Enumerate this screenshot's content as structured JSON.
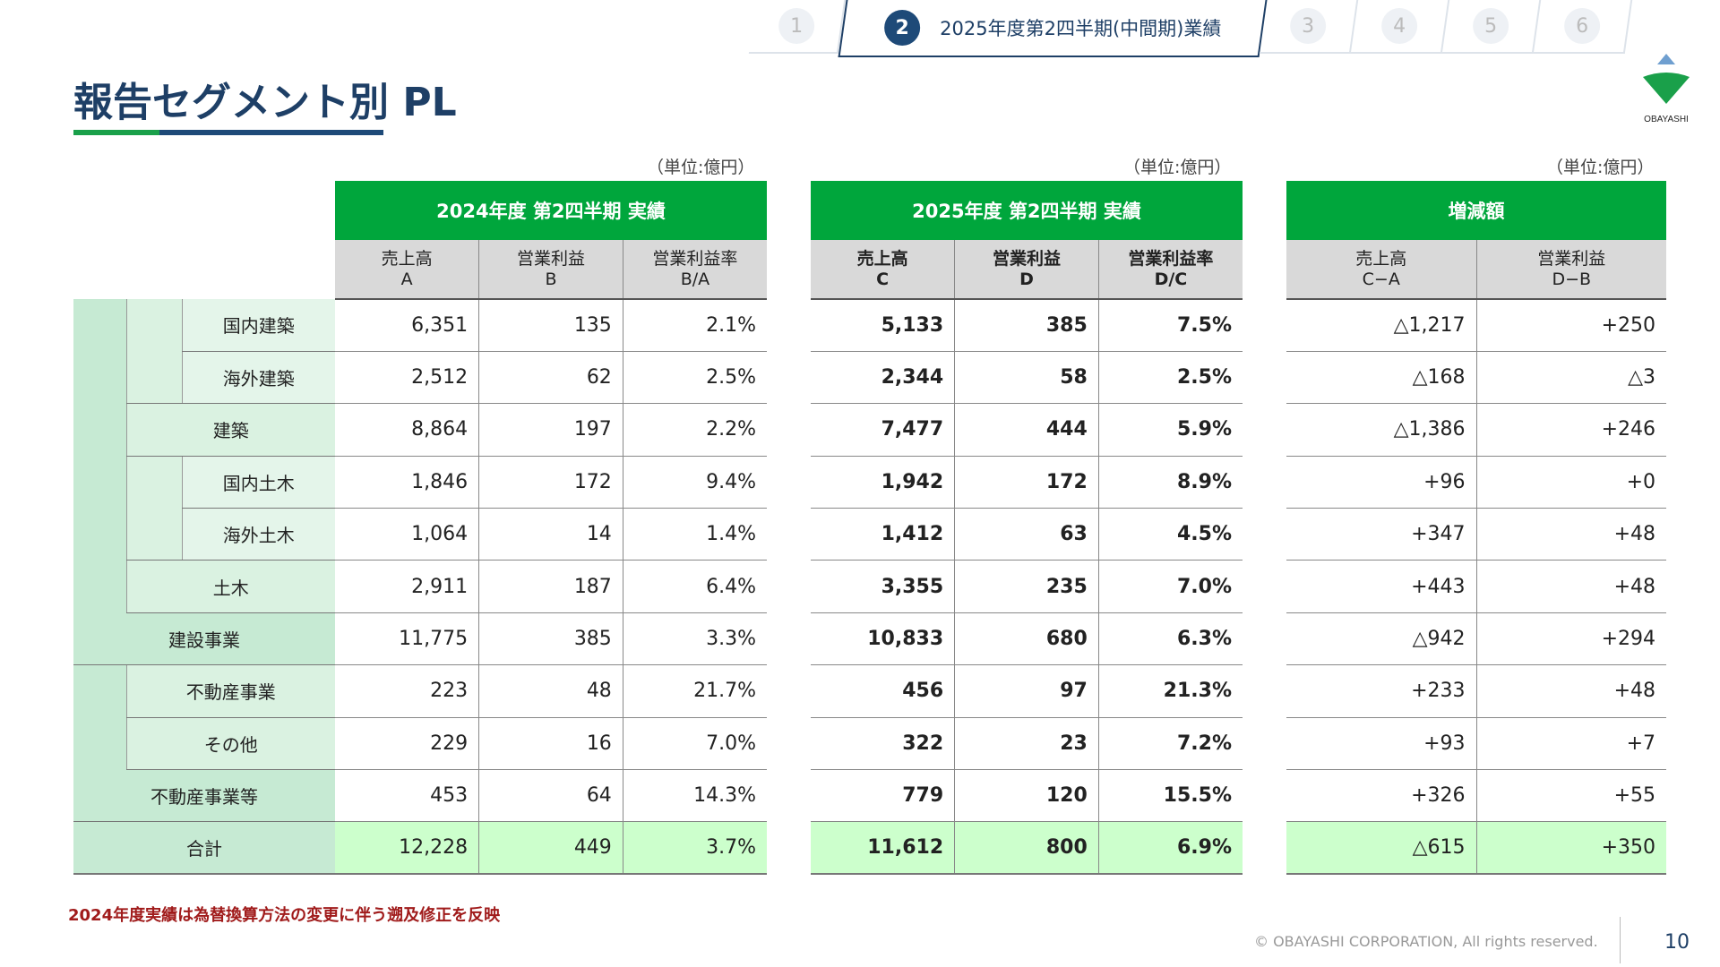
{
  "tabs": [
    {
      "num": "1"
    },
    {
      "num": "2",
      "label": "2025年度第2四半期(中間期)業績"
    },
    {
      "num": "3"
    },
    {
      "num": "4"
    },
    {
      "num": "5"
    },
    {
      "num": "6"
    }
  ],
  "title": "報告セグメント別 PL",
  "logo_text": "OBAYASHI",
  "unit": "（単位:億円）",
  "colors": {
    "header": "#00a63c",
    "navy": "#1e3f66",
    "total_bg": "#ccffcc"
  },
  "labels": [
    "国内建築",
    "海外建築",
    "建築",
    "国内土木",
    "海外土木",
    "土木",
    "建設事業",
    "不動産事業",
    "その他",
    "不動産事業等",
    "合計"
  ],
  "t1": {
    "title": "2024年度 第2四半期 実績",
    "cols": [
      [
        "売上高",
        "A"
      ],
      [
        "営業利益",
        "B"
      ],
      [
        "営業利益率",
        "B/A"
      ]
    ],
    "rows": [
      [
        "6,351",
        "135",
        "2.1%"
      ],
      [
        "2,512",
        "62",
        "2.5%"
      ],
      [
        "8,864",
        "197",
        "2.2%"
      ],
      [
        "1,846",
        "172",
        "9.4%"
      ],
      [
        "1,064",
        "14",
        "1.4%"
      ],
      [
        "2,911",
        "187",
        "6.4%"
      ],
      [
        "11,775",
        "385",
        "3.3%"
      ],
      [
        "223",
        "48",
        "21.7%"
      ],
      [
        "229",
        "16",
        "7.0%"
      ],
      [
        "453",
        "64",
        "14.3%"
      ],
      [
        "12,228",
        "449",
        "3.7%"
      ]
    ]
  },
  "t2": {
    "title": "2025年度 第2四半期 実績",
    "cols": [
      [
        "売上高",
        "C"
      ],
      [
        "営業利益",
        "D"
      ],
      [
        "営業利益率",
        "D/C"
      ]
    ],
    "rows": [
      [
        "5,133",
        "385",
        "7.5%"
      ],
      [
        "2,344",
        "58",
        "2.5%"
      ],
      [
        "7,477",
        "444",
        "5.9%"
      ],
      [
        "1,942",
        "172",
        "8.9%"
      ],
      [
        "1,412",
        "63",
        "4.5%"
      ],
      [
        "3,355",
        "235",
        "7.0%"
      ],
      [
        "10,833",
        "680",
        "6.3%"
      ],
      [
        "456",
        "97",
        "21.3%"
      ],
      [
        "322",
        "23",
        "7.2%"
      ],
      [
        "779",
        "120",
        "15.5%"
      ],
      [
        "11,612",
        "800",
        "6.9%"
      ]
    ]
  },
  "t3": {
    "title": "増減額",
    "cols": [
      [
        "売上高",
        "C−A"
      ],
      [
        "営業利益",
        "D−B"
      ]
    ],
    "rows": [
      [
        "△1,217",
        "+250"
      ],
      [
        "△168",
        "△3"
      ],
      [
        "△1,386",
        "+246"
      ],
      [
        "+96",
        "+0"
      ],
      [
        "+347",
        "+48"
      ],
      [
        "+443",
        "+48"
      ],
      [
        "△942",
        "+294"
      ],
      [
        "+233",
        "+48"
      ],
      [
        "+93",
        "+7"
      ],
      [
        "+326",
        "+55"
      ],
      [
        "△615",
        "+350"
      ]
    ]
  },
  "footnote": "2024年度実績は為替換算方法の変更に伴う遡及修正を反映",
  "copyright": "© OBAYASHI CORPORATION, All rights reserved.",
  "page": "10"
}
